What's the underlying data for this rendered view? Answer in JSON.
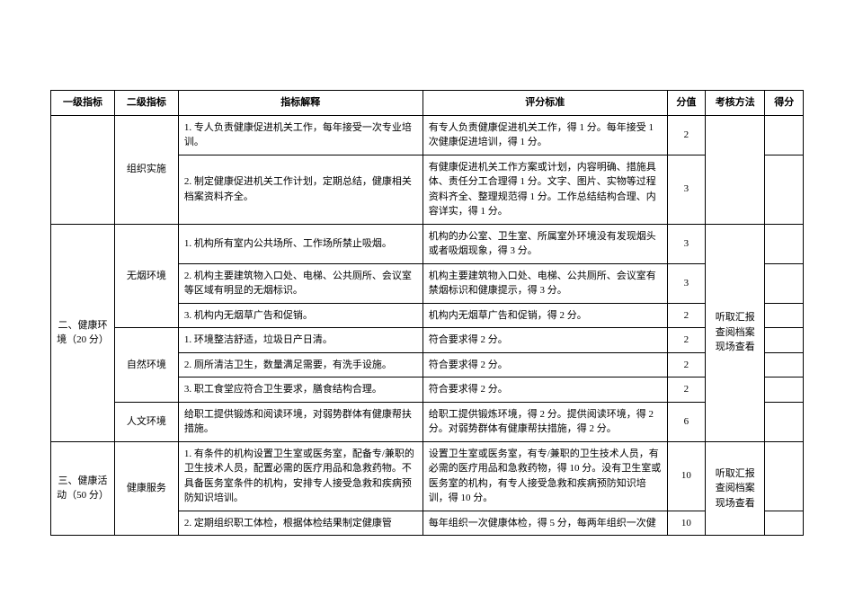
{
  "headers": {
    "level1": "一级指标",
    "level2": "二级指标",
    "explanation": "指标解释",
    "standard": "评分标准",
    "score": "分值",
    "method": "考核方法",
    "result": "得分"
  },
  "sections": [
    {
      "level2": "组织实施",
      "rows": [
        {
          "explanation": "1. 专人负责健康促进机关工作，每年接受一次专业培训。",
          "standard": "有专人负责健康促进机关工作，得 1 分。每年接受 1 次健康促进培训，得 1 分。",
          "score": "2"
        },
        {
          "explanation": "2. 制定健康促进机关工作计划，定期总结，健康相关档案资料齐全。",
          "standard": "有健康促进机关工作方案或计划，内容明确、措施具体、责任分工合理得 1 分。文字、图片、实物等过程资料齐全、整理规范得 1 分。工作总结结构合理、内容详实，得 1 分。",
          "score": "3"
        }
      ]
    },
    {
      "level1": "二、健康环境（20 分）",
      "method": "听取汇报 查阅档案 现场查看",
      "groups": [
        {
          "level2": "无烟环境",
          "rows": [
            {
              "explanation": "1. 机构所有室内公共场所、工作场所禁止吸烟。",
              "standard": "机构的办公室、卫生室、所属室外环境没有发现烟头或者吸烟现象，得 3 分。",
              "score": "3"
            },
            {
              "explanation": "2. 机构主要建筑物入口处、电梯、公共厕所、会议室等区域有明显的无烟标识。",
              "standard": "机构主要建筑物入口处、电梯、公共厕所、会议室有禁烟标识和健康提示，得 3 分。",
              "score": "3"
            },
            {
              "explanation": "3. 机构内无烟草广告和促销。",
              "standard": "机构内无烟草广告和促销，得 2 分。",
              "score": "2"
            }
          ]
        },
        {
          "level2": "自然环境",
          "rows": [
            {
              "explanation": "1. 环境整洁舒适，垃圾日产日清。",
              "standard": "符合要求得 2 分。",
              "score": "2"
            },
            {
              "explanation": "2. 厕所清洁卫生，数量满足需要，有洗手设施。",
              "standard": "符合要求得 2 分。",
              "score": "2"
            },
            {
              "explanation": "3. 职工食堂应符合卫生要求，膳食结构合理。",
              "standard": "符合要求得 2 分。",
              "score": "2"
            }
          ]
        },
        {
          "level2": "人文环境",
          "rows": [
            {
              "explanation": "给职工提供锻炼和阅读环境，对弱势群体有健康帮扶措施。",
              "standard": "给职工提供锻炼环境，得 2 分。提供阅读环境，得 2 分。对弱势群体有健康帮扶措施，得 2 分。",
              "score": "6"
            }
          ]
        }
      ]
    },
    {
      "level1": "三、健康活动（50 分）",
      "level2": "健康服务",
      "method": "听取汇报 查阅档案 现场查看",
      "rows": [
        {
          "explanation": "1. 有条件的机构设置卫生室或医务室，配备专/兼职的卫生技术人员，配置必需的医疗用品和急救药物。不具备医务室条件的机构，安排专人接受急救和疾病预防知识培训。",
          "standard": "设置卫生室或医务室，有专/兼职的卫生技术人员，有必需的医疗用品和急救药物，得 10 分。没有卫生室或医务室的机构，有专人接受急救和疾病预防知识培训，得 10 分。",
          "score": "10"
        },
        {
          "explanation": "2. 定期组织职工体检，根据体检结果制定健康管",
          "standard": "每年组织一次健康体检，得 5 分，每两年组织一次健",
          "score": "10"
        }
      ]
    }
  ]
}
